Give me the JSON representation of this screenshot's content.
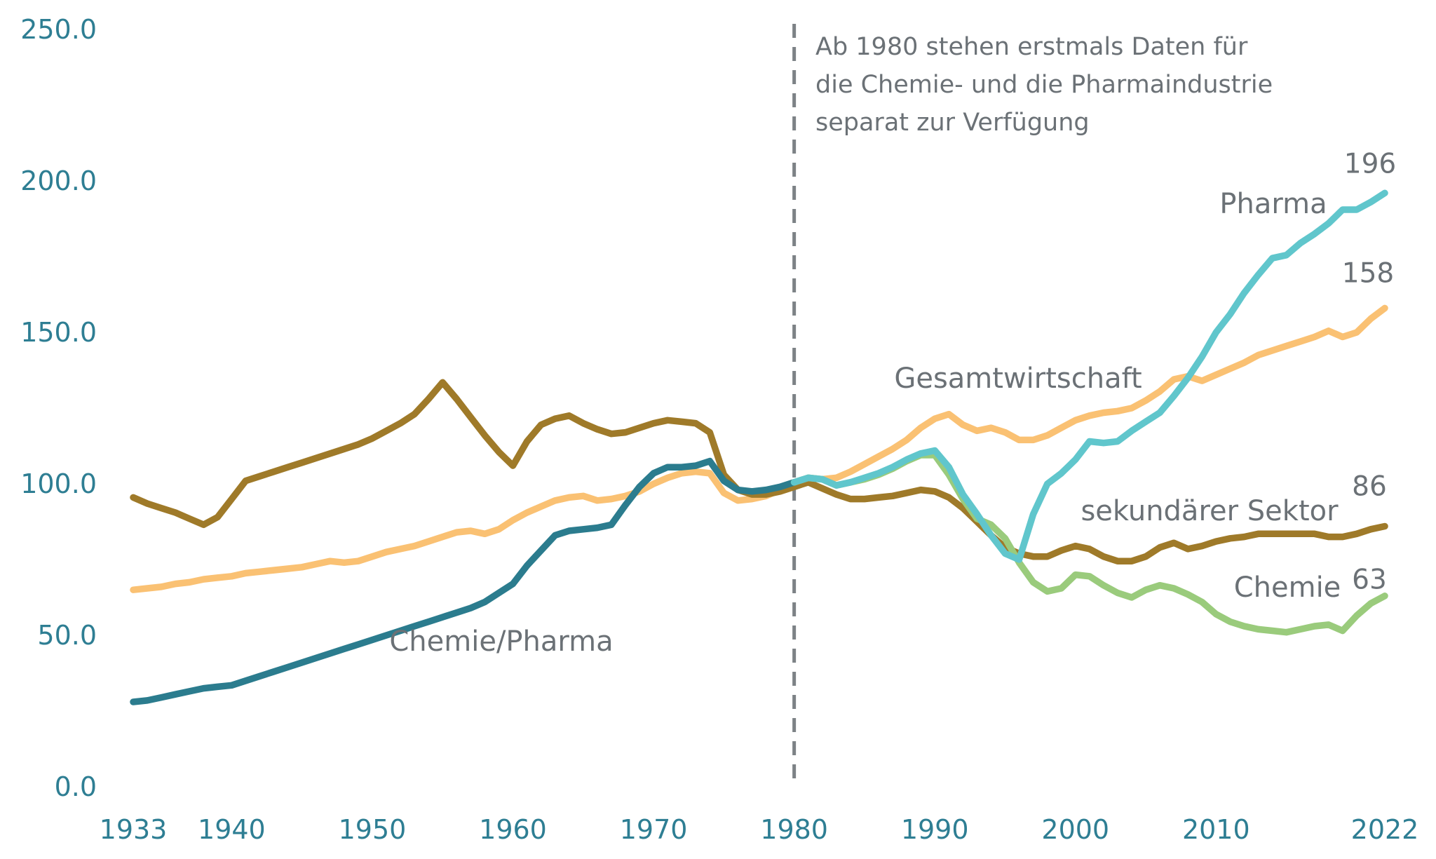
{
  "chart_data": {
    "type": "line",
    "title": "",
    "grid": false,
    "legend_position": "inline-labels",
    "x_axis": {
      "range": [
        1933,
        2022
      ],
      "ticks": [
        {
          "label": "1933",
          "year": 1933
        },
        {
          "label": "1940",
          "year": 1940
        },
        {
          "label": "1950",
          "year": 1950
        },
        {
          "label": "1960",
          "year": 1960
        },
        {
          "label": "1970",
          "year": 1970
        },
        {
          "label": "1980",
          "year": 1980
        },
        {
          "label": "1990",
          "year": 1990
        },
        {
          "label": "2000",
          "year": 2000
        },
        {
          "label": "2010",
          "year": 2010
        },
        {
          "label": "2022",
          "year": 2022
        }
      ]
    },
    "y_axis": {
      "range": [
        0,
        250
      ],
      "ticks": [
        {
          "label": "0.0",
          "value": 0
        },
        {
          "label": "50.0",
          "value": 50
        },
        {
          "label": "100.0",
          "value": 100
        },
        {
          "label": "150.0",
          "value": 150
        },
        {
          "label": "200.0",
          "value": 200
        },
        {
          "label": "250.0",
          "value": 250
        }
      ]
    },
    "break_line": {
      "year": 1980,
      "color": "#7d8286"
    },
    "annotation_lines": [
      "Ab 1980 stehen erstmals Daten für",
      "die Chemie- und die Pharmaindustrie",
      "separat zur Verfügung"
    ],
    "series": [
      {
        "id": "gesamtwirtschaft",
        "name": "Gesamtwirtschaft",
        "color": "#fac173",
        "start_year": 1933,
        "values": [
          65,
          65.5,
          66,
          67,
          67.5,
          68.5,
          69,
          69.5,
          70.5,
          71,
          71.5,
          72,
          72.5,
          73.5,
          74.5,
          74,
          74.5,
          76,
          77.5,
          78.5,
          79.5,
          81,
          82.5,
          84,
          84.5,
          83.5,
          85,
          88,
          90.5,
          92.5,
          94.5,
          95.5,
          96,
          94.5,
          95,
          96,
          97.5,
          100,
          102,
          103.5,
          104,
          103.5,
          97,
          94.5,
          95,
          96,
          98,
          100,
          102,
          101.5,
          102,
          104,
          106.5,
          109,
          111.5,
          114.5,
          118.5,
          121.5,
          123,
          119.5,
          117.5,
          118.5,
          117,
          114.5,
          114.5,
          116,
          118.5,
          121,
          122.5,
          123.5,
          124,
          125,
          127.5,
          130.5,
          134.5,
          135.5,
          134,
          136,
          138,
          140,
          142.5,
          144,
          145.5,
          147,
          148.5,
          150.5,
          148.5,
          150,
          154.5,
          158
        ]
      },
      {
        "id": "sekundaerer-sektor",
        "name": "sekundärer Sektor",
        "color": "#9f7a29",
        "start_year": 1933,
        "values": [
          95.5,
          93.5,
          92,
          90.5,
          88.5,
          86.5,
          89,
          95,
          101,
          102.5,
          104,
          105.5,
          107,
          108.5,
          110,
          111.5,
          113,
          115,
          117.5,
          120,
          123,
          128,
          133.5,
          128,
          122,
          116,
          110.5,
          106,
          114,
          119.5,
          121.5,
          122.5,
          120,
          118,
          116.5,
          117,
          118.5,
          120,
          121,
          120.5,
          120,
          117,
          103,
          98,
          96.5,
          96.5,
          97.5,
          99,
          100.5,
          98.5,
          96.5,
          95,
          95,
          95.5,
          96,
          97,
          98,
          97.5,
          95.5,
          92,
          87.5,
          83,
          79,
          77,
          76,
          76,
          78,
          79.5,
          78.5,
          76,
          74.5,
          74.5,
          76,
          79,
          80.5,
          78.5,
          79.5,
          81,
          82,
          82.5,
          83.5,
          83.5,
          83.5,
          83.5,
          83.5,
          82.5,
          82.5,
          83.5,
          85,
          86
        ]
      },
      {
        "id": "chemie-pharma",
        "name": "Chemie/Pharma",
        "color": "#2b7c8e",
        "start_year": 1933,
        "values": [
          28,
          28.5,
          29.5,
          30.5,
          31.5,
          32.5,
          33,
          33.5,
          35,
          36.5,
          38,
          39.5,
          41,
          42.5,
          44,
          45.5,
          47,
          48.5,
          50,
          51.5,
          53,
          54.5,
          56,
          57.5,
          59,
          61,
          64,
          67,
          73,
          78,
          83,
          84.5,
          85,
          85.5,
          86.5,
          93,
          99,
          103.5,
          105.5,
          105.5,
          106,
          107.5,
          101,
          98,
          97.5,
          98,
          99,
          100.5
        ]
      },
      {
        "id": "chemie",
        "name": "Chemie",
        "color": "#9acb7c",
        "start_year": 1980,
        "values": [
          100.5,
          102,
          101.5,
          99.5,
          100.5,
          101.5,
          103,
          105,
          107.5,
          109.5,
          109.5,
          103,
          95,
          88.5,
          86.5,
          82,
          74,
          67.5,
          64.5,
          65.5,
          70,
          69.5,
          66.5,
          64,
          62.5,
          65,
          66.5,
          65.5,
          63.5,
          61,
          57,
          54.5,
          53,
          52,
          51.5,
          51,
          52,
          53,
          53.5,
          51.5,
          56.5,
          60.5,
          63
        ]
      },
      {
        "id": "pharma",
        "name": "Pharma",
        "color": "#60c6cc",
        "start_year": 1980,
        "values": [
          100.5,
          102,
          101.5,
          99.5,
          100.5,
          102,
          103.5,
          105.5,
          108,
          110,
          111,
          105.5,
          96.5,
          90,
          83,
          77,
          75,
          90,
          100,
          103.5,
          108,
          114,
          113.5,
          114,
          117.5,
          120.5,
          123.5,
          129,
          135,
          142,
          150,
          156,
          163,
          169,
          174.5,
          175.5,
          179.5,
          182.5,
          186,
          190.5,
          190.5,
          193,
          196
        ]
      }
    ],
    "series_labels": {
      "chemie_pharma": "Chemie/Pharma",
      "gesamtwirtschaft": "Gesamtwirtschaft",
      "pharma": "Pharma",
      "sekundaerer_sektor": "sekundärer Sektor",
      "chemie": "Chemie"
    },
    "end_values": {
      "pharma": "196",
      "gesamtwirtschaft": "158",
      "sekundaerer_sektor": "86",
      "chemie": "63"
    },
    "colors": {
      "axis_text": "#2e7e93",
      "label_text": "#6b7176",
      "break_line": "#7d8286"
    }
  }
}
